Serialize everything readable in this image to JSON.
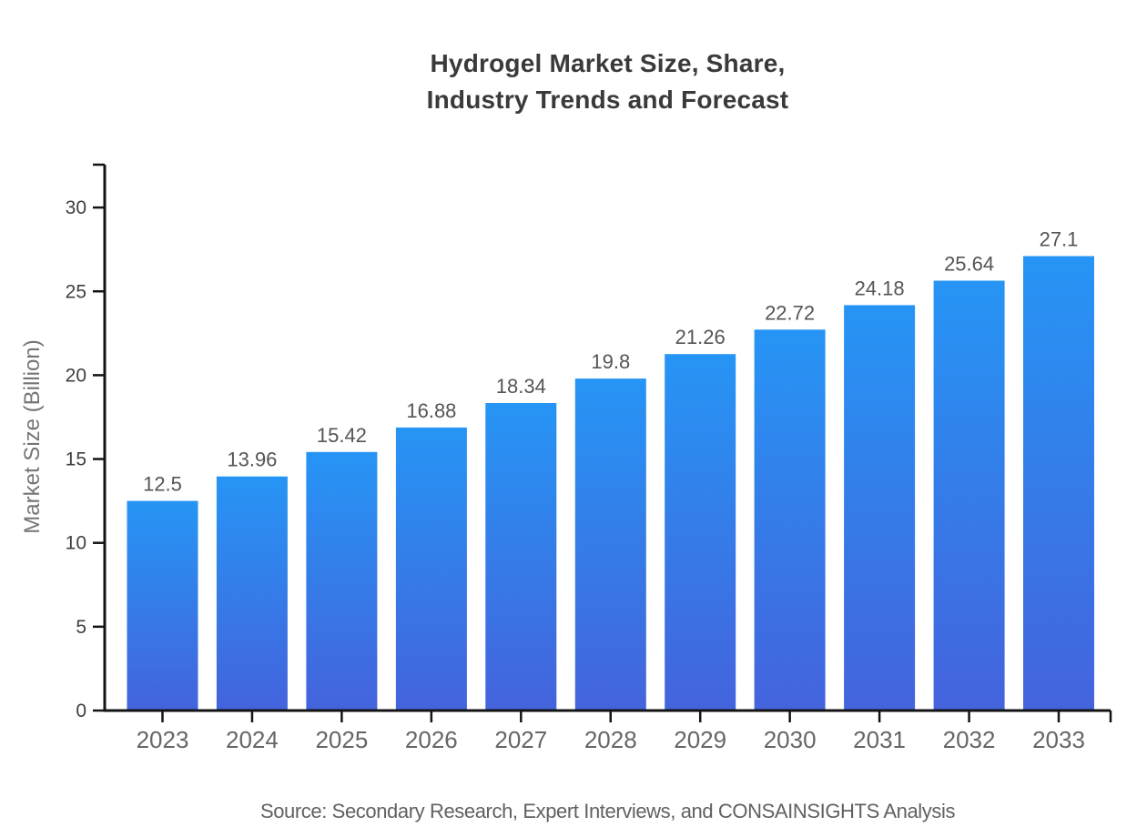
{
  "title": "Hydrogel Market Size, Share,\nIndustry Trends and Forecast",
  "source": "Source: Secondary Research, Expert Interviews, and CONSAINSIGHTS Analysis",
  "chart_data": {
    "type": "bar",
    "title": "Hydrogel Market Size, Share, Industry Trends and Forecast",
    "categories": [
      "2023",
      "2024",
      "2025",
      "2026",
      "2027",
      "2028",
      "2029",
      "2030",
      "2031",
      "2032",
      "2033"
    ],
    "values": [
      12.5,
      13.96,
      15.42,
      16.88,
      18.34,
      19.8,
      21.26,
      22.72,
      24.18,
      25.64,
      27.1
    ],
    "value_labels": [
      "12.5",
      "13.96",
      "15.42",
      "16.88",
      "18.34",
      "19.8",
      "21.26",
      "22.72",
      "24.18",
      "25.64",
      "27.1"
    ],
    "xlabel": "",
    "ylabel": "Market Size (Billion)",
    "ylim": [
      0,
      32.5
    ],
    "yticks": [
      0,
      5,
      10,
      15,
      20,
      25,
      30
    ],
    "grid": false,
    "legend": "none"
  },
  "colors": {
    "background": "#ffffff",
    "title": "#3a3a3a",
    "axis": "#141414",
    "y_tick_label": "#3f3f3f",
    "x_tick_label": "#666666",
    "value_label": "#555555",
    "y_axis_label": "#757575",
    "source": "#616161",
    "bar_gradient_top": "#2695F5",
    "bar_gradient_bottom": "#4463DC"
  }
}
